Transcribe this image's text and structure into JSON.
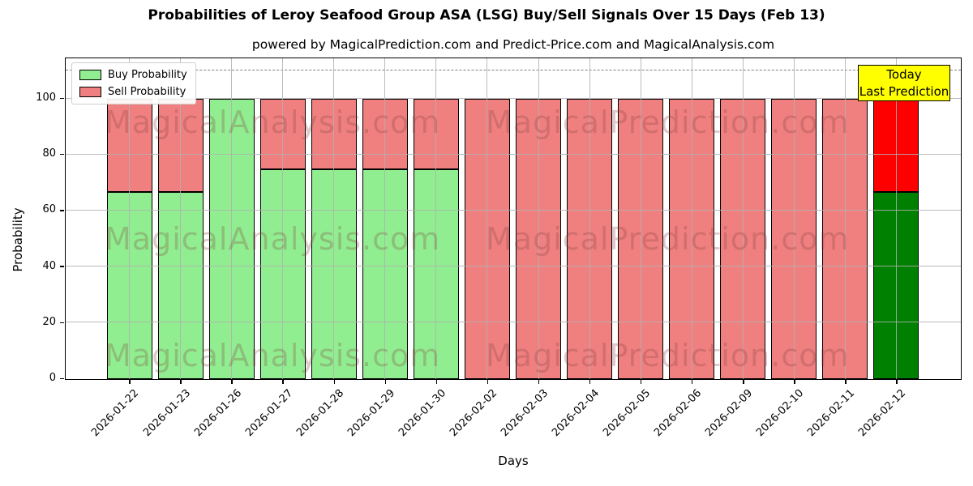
{
  "title": "Probabilities of Leroy Seafood Group ASA (LSG) Buy/Sell Signals Over 15 Days (Feb 13)",
  "subtitle": "powered by MagicalPrediction.com and Predict-Price.com and MagicalAnalysis.com",
  "axes": {
    "xlabel": "Days",
    "ylabel": "Probability",
    "yticks": [
      0,
      20,
      40,
      60,
      80,
      100
    ],
    "ylim": [
      0,
      115
    ],
    "dashed_guideline_y": 110,
    "grid": true
  },
  "legend": {
    "position": "upper left",
    "items": [
      {
        "label": "Buy Probability",
        "color": "#90EE90"
      },
      {
        "label": "Sell Probability",
        "color": "#F08080"
      }
    ]
  },
  "today_label": {
    "line1": "Today",
    "line2": "Last Prediction",
    "bg_color": "#FFFF00",
    "border_color": "#000000"
  },
  "watermarks": {
    "left_text": "MagicalAnalysis.com",
    "right_text": "MagicalPrediction.com"
  },
  "chart_data": {
    "type": "bar",
    "stacked": true,
    "title": "Probabilities of Leroy Seafood Group ASA (LSG) Buy/Sell Signals Over 15 Days (Feb 13)",
    "xlabel": "Days",
    "ylabel": "Probability",
    "ylim": [
      0,
      115
    ],
    "categories": [
      "2026-01-22",
      "2026-01-23",
      "2026-01-26",
      "2026-01-27",
      "2026-01-28",
      "2026-01-29",
      "2026-01-30",
      "2026-02-02",
      "2026-02-03",
      "2026-02-04",
      "2026-02-05",
      "2026-02-06",
      "2026-02-09",
      "2026-02-10",
      "2026-02-11",
      "2026-02-12"
    ],
    "series": [
      {
        "name": "Buy Probability",
        "values": [
          66.7,
          66.7,
          100,
          75,
          75,
          75,
          75,
          0,
          0,
          0,
          0,
          0,
          0,
          0,
          0,
          66.7
        ]
      },
      {
        "name": "Sell Probability",
        "values": [
          33.3,
          33.3,
          0,
          25,
          25,
          25,
          25,
          100,
          100,
          100,
          100,
          100,
          100,
          100,
          100,
          33.3
        ]
      }
    ],
    "colors": {
      "buy": "#90EE90",
      "sell": "#F08080",
      "buy_today": "#008000",
      "sell_today": "#FF0000"
    },
    "highlight_index": 15,
    "legend_position": "upper left"
  }
}
